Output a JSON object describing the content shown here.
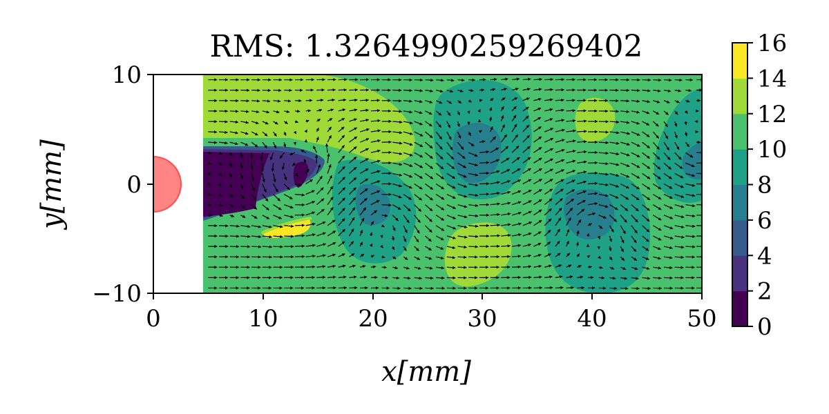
{
  "chart_data": {
    "type": "heatmap",
    "subtype": "filled contour with velocity vector field",
    "title": "RMS: 1.3264990259269402",
    "xlabel": "x[mm]",
    "ylabel": "y[mm]",
    "xlim": [
      0,
      50
    ],
    "ylim": [
      -10,
      10
    ],
    "x_ticks": [
      "0",
      "10",
      "20",
      "30",
      "40",
      "50"
    ],
    "y_ticks": [
      "−10",
      "0",
      "10"
    ],
    "data_extent": {
      "x": [
        4.5,
        50
      ],
      "y": [
        -10,
        10
      ]
    },
    "colorbar": {
      "levels": [
        0,
        2,
        4,
        6,
        8,
        10,
        12,
        14,
        16
      ],
      "tick_labels": [
        "0",
        "2",
        "4",
        "6",
        "8",
        "10",
        "12",
        "14",
        "16"
      ],
      "colors": [
        "#440154",
        "#46327e",
        "#365c8d",
        "#277f8e",
        "#1fa187",
        "#4ac16d",
        "#a0da39",
        "#fde725"
      ]
    },
    "cylinder": {
      "center": [
        0,
        0
      ],
      "radius": 2.5,
      "color": "#ff6f6f"
    },
    "background_level": 10,
    "regions": [
      {
        "name": "upper-band",
        "level": 12,
        "x": [
          4.5,
          22
        ],
        "y": [
          5,
          10
        ]
      },
      {
        "name": "upper-wake-lobe",
        "level": 12,
        "x": [
          16,
          25
        ],
        "y": [
          1.5,
          9.5
        ]
      },
      {
        "name": "eddy-a-outer",
        "level": 8,
        "x": [
          17,
          25
        ],
        "y": [
          -7.5,
          3
        ]
      },
      {
        "name": "eddy-a-core",
        "level": 6,
        "x": [
          19,
          22
        ],
        "y": [
          -4,
          -0.5
        ]
      },
      {
        "name": "eddy-b-outer",
        "level": 8,
        "x": [
          25,
          34
        ],
        "y": [
          -1,
          10
        ]
      },
      {
        "name": "eddy-b-core",
        "level": 6,
        "x": [
          27,
          32
        ],
        "y": [
          0,
          6
        ]
      },
      {
        "name": "lower-right-lobe",
        "level": 12,
        "x": [
          26,
          34
        ],
        "y": [
          -9.5,
          -3.5
        ]
      },
      {
        "name": "eddy-c-outer",
        "level": 8,
        "x": [
          35,
          46
        ],
        "y": [
          -10,
          2.5
        ]
      },
      {
        "name": "eddy-c-core",
        "level": 6,
        "x": [
          37,
          43
        ],
        "y": [
          -5,
          -0.5
        ]
      },
      {
        "name": "upper-right-spot",
        "level": 12,
        "x": [
          38,
          42
        ],
        "y": [
          4,
          8
        ]
      },
      {
        "name": "right-edge-eddy",
        "level": 8,
        "x": [
          45,
          50
        ],
        "y": [
          0,
          9
        ]
      },
      {
        "name": "right-edge-core",
        "level": 6,
        "x": [
          48,
          50
        ],
        "y": [
          1,
          4
        ]
      },
      {
        "name": "wake-outer",
        "level": 4,
        "x": [
          4.5,
          16
        ],
        "y": [
          -3.5,
          3
        ]
      },
      {
        "name": "wake-core",
        "level": 0,
        "x": [
          4.5,
          13
        ],
        "y": [
          -3,
          3
        ]
      },
      {
        "name": "high-speed-streak",
        "level": 14,
        "x": [
          10,
          14.5
        ],
        "y": [
          -5,
          -3.5
        ]
      }
    ]
  }
}
